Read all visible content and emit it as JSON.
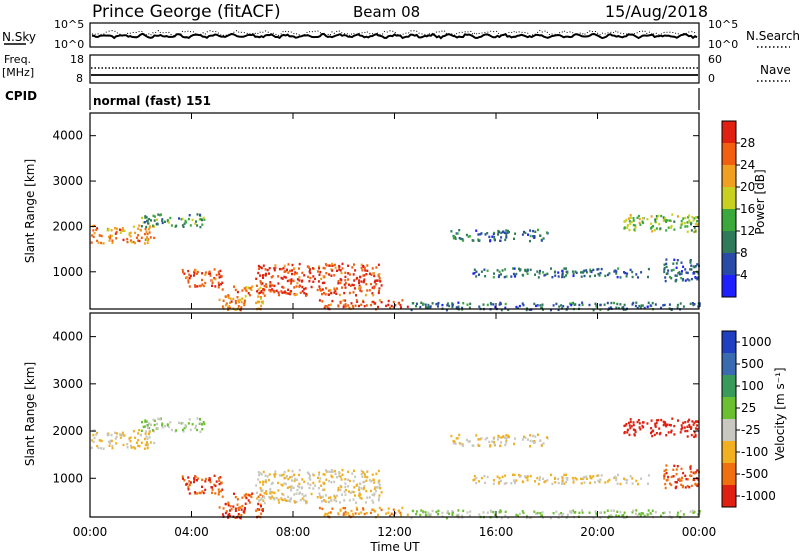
{
  "header": {
    "station": "Prince George (fitACF)",
    "beam": "Beam 08",
    "date": "15/Aug/2018"
  },
  "sky_panel": {
    "label": "N.Sky",
    "left_ticks": [
      "10^5",
      "10^0"
    ],
    "right_ticks": [
      "10^5",
      "10^0"
    ],
    "right_label": "N.Search",
    "right_label_style": "dotted"
  },
  "freq_panel": {
    "label_top": "Freq.",
    "label_bottom": "[MHz]",
    "left_ticks": [
      "18",
      "8"
    ],
    "right_ticks": [
      "60",
      "0"
    ],
    "right_label": "Nave",
    "right_label_style": "dotted"
  },
  "cpid_panel": {
    "label": "CPID",
    "text": "normal (fast) 151"
  },
  "axes": {
    "ylabel": "Slant Range [km]",
    "xlabel": "Time UT",
    "y_ticks": [
      "1000",
      "2000",
      "3000",
      "4000"
    ],
    "x_ticks": [
      "00:00",
      "04:00",
      "08:00",
      "12:00",
      "16:00",
      "20:00",
      "00:00"
    ]
  },
  "power_colorbar": {
    "label": "Power [dB]",
    "ticks": [
      "4",
      "8",
      "12",
      "16",
      "20",
      "24",
      "28"
    ],
    "colors": [
      "#1f1fff",
      "#2a4aa8",
      "#2f7a5a",
      "#3aa83a",
      "#c8d020",
      "#f0a020",
      "#f06010",
      "#e02010"
    ]
  },
  "velocity_colorbar": {
    "label": "Velocity [m s⁻¹]",
    "ticks": [
      "1000",
      "500",
      "100",
      "25",
      "-25",
      "-100",
      "-500",
      "-1000"
    ],
    "colors": [
      "#2040c0",
      "#3a6ab0",
      "#3a9a5a",
      "#6ac030",
      "#c8c8c0",
      "#f0b020",
      "#f07010",
      "#e02010"
    ]
  },
  "chart_data": {
    "type": "heatmap",
    "x_range_hours": [
      0,
      24
    ],
    "y_range_km": [
      180,
      4500
    ],
    "power_db_range": [
      0,
      32
    ],
    "velocity_range": [
      -1000,
      1000
    ],
    "scatter_regions": [
      {
        "t0": 0.0,
        "t1": 2.5,
        "r0": 1650,
        "r1": 2050,
        "power": 24,
        "velocity": -25
      },
      {
        "t0": 2.0,
        "t1": 4.5,
        "r0": 2000,
        "r1": 2300,
        "power": 12,
        "velocity": 25
      },
      {
        "t0": 3.5,
        "t1": 5.2,
        "r0": 700,
        "r1": 1100,
        "power": 28,
        "velocity": -500
      },
      {
        "t0": 5.0,
        "t1": 6.8,
        "r0": 180,
        "r1": 700,
        "power": 24,
        "velocity": -500
      },
      {
        "t0": 6.5,
        "t1": 11.5,
        "r0": 500,
        "r1": 1200,
        "power": 28,
        "velocity": -25
      },
      {
        "t0": 9.0,
        "t1": 12.5,
        "r0": 200,
        "r1": 400,
        "power": 28,
        "velocity": -100
      },
      {
        "t0": 12.5,
        "t1": 24.0,
        "r0": 180,
        "r1": 350,
        "power": 8,
        "velocity": 25
      },
      {
        "t0": 14.2,
        "t1": 18.0,
        "r0": 1700,
        "r1": 1950,
        "power": 8,
        "velocity": -25
      },
      {
        "t0": 15.0,
        "t1": 22.0,
        "r0": 900,
        "r1": 1100,
        "power": 8,
        "velocity": -25
      },
      {
        "t0": 21.0,
        "t1": 24.0,
        "r0": 1900,
        "r1": 2300,
        "power": 16,
        "velocity": -1000
      },
      {
        "t0": 22.5,
        "t1": 24.0,
        "r0": 800,
        "r1": 1300,
        "power": 8,
        "velocity": -500
      }
    ]
  }
}
